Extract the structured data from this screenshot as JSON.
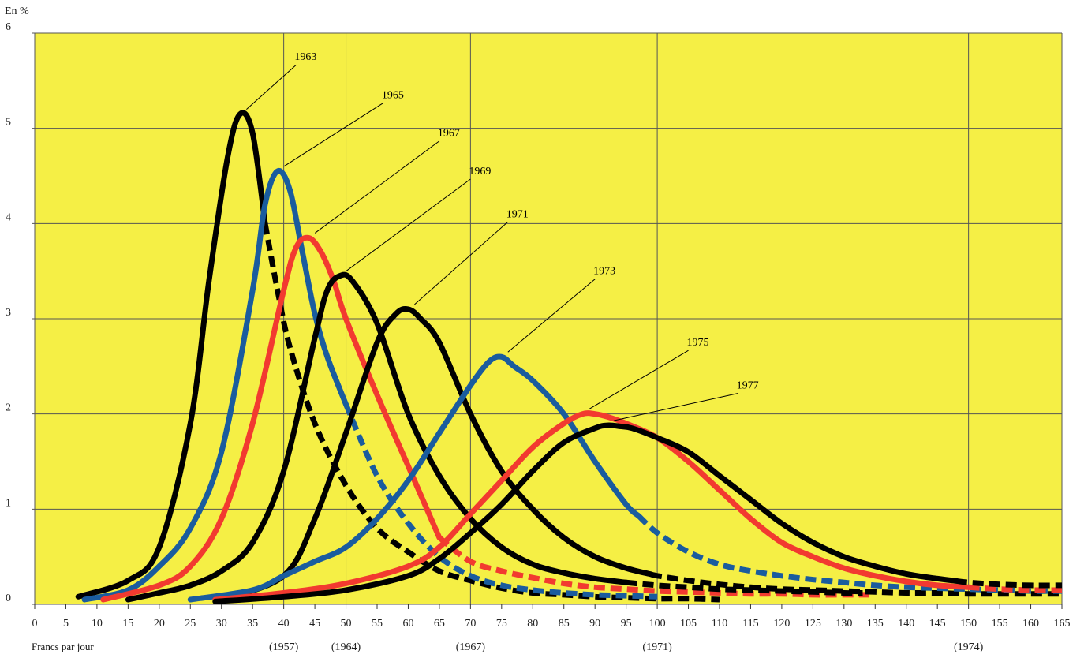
{
  "chart_data": {
    "type": "line",
    "ylabel": "En %",
    "xlabel": "Francs par jour",
    "xlim": [
      0,
      165
    ],
    "ylim": [
      0,
      6
    ],
    "x_ticks": [
      0,
      5,
      10,
      15,
      20,
      25,
      30,
      35,
      40,
      45,
      50,
      55,
      60,
      65,
      70,
      75,
      80,
      85,
      90,
      95,
      100,
      105,
      110,
      115,
      120,
      125,
      130,
      135,
      140,
      145,
      150,
      155,
      160,
      165
    ],
    "y_ticks": [
      0,
      1,
      2,
      3,
      4,
      5,
      6
    ],
    "grid_x": [
      0,
      40,
      50,
      70,
      100,
      150
    ],
    "grid_y": [
      0,
      1,
      2,
      3,
      4,
      5,
      6
    ],
    "grid": true,
    "background": "#f5ef45",
    "grid_color": "#555555",
    "reference_years": [
      {
        "x": 40,
        "label": "(1957)"
      },
      {
        "x": 50,
        "label": "(1964)"
      },
      {
        "x": 70,
        "label": "(1967)"
      },
      {
        "x": 100,
        "label": "(1971)"
      },
      {
        "x": 150,
        "label": "(1974)"
      }
    ],
    "series": [
      {
        "name": "1963",
        "color": "#000000",
        "solid_until": 37,
        "x": [
          7,
          15,
          20,
          25,
          28,
          31,
          33,
          35,
          37,
          39,
          41,
          45,
          50,
          55,
          60,
          65,
          70,
          75,
          80,
          85,
          90,
          95,
          100,
          105,
          110
        ],
        "y": [
          0.08,
          0.25,
          0.6,
          1.9,
          3.4,
          4.7,
          5.15,
          4.95,
          4.0,
          3.3,
          2.7,
          1.9,
          1.25,
          0.8,
          0.55,
          0.35,
          0.25,
          0.17,
          0.12,
          0.1,
          0.08,
          0.07,
          0.06,
          0.06,
          0.05
        ],
        "label": {
          "x": 42,
          "y": 5.7
        }
      },
      {
        "name": "1965",
        "color": "#1a5c9e",
        "solid_until": 50,
        "x": [
          8,
          15,
          20,
          25,
          30,
          35,
          37,
          39,
          41,
          43,
          45,
          47,
          50,
          55,
          60,
          65,
          70,
          75,
          80,
          85,
          90,
          95,
          100
        ],
        "y": [
          0.05,
          0.15,
          0.4,
          0.8,
          1.6,
          3.3,
          4.2,
          4.55,
          4.35,
          3.7,
          3.05,
          2.6,
          2.1,
          1.35,
          0.85,
          0.5,
          0.3,
          0.2,
          0.15,
          0.12,
          0.1,
          0.09,
          0.08
        ],
        "label": {
          "x": 56,
          "y": 5.3
        }
      },
      {
        "name": "1967",
        "color": "#f23a30",
        "solid_until": 65,
        "x": [
          11,
          20,
          25,
          30,
          35,
          40,
          42,
          44,
          46,
          48,
          50,
          55,
          60,
          65,
          70,
          75,
          80,
          85,
          90,
          95,
          100,
          105,
          110,
          115,
          120,
          125,
          130,
          134
        ],
        "y": [
          0.05,
          0.2,
          0.4,
          0.9,
          1.9,
          3.3,
          3.75,
          3.85,
          3.7,
          3.4,
          3.0,
          2.2,
          1.45,
          0.7,
          0.45,
          0.35,
          0.28,
          0.22,
          0.18,
          0.16,
          0.14,
          0.13,
          0.12,
          0.11,
          0.11,
          0.1,
          0.1,
          0.1
        ],
        "label": {
          "x": 65,
          "y": 4.9
        }
      },
      {
        "name": "1969",
        "color": "#000000",
        "solid_until": 95,
        "x": [
          15,
          20,
          25,
          30,
          35,
          40,
          45,
          47,
          49,
          51,
          55,
          60,
          65,
          70,
          75,
          80,
          85,
          90,
          95,
          100,
          105,
          110,
          115,
          120,
          125,
          130,
          133
        ],
        "y": [
          0.05,
          0.12,
          0.2,
          0.35,
          0.65,
          1.4,
          2.8,
          3.3,
          3.45,
          3.4,
          2.95,
          2.0,
          1.35,
          0.9,
          0.6,
          0.42,
          0.33,
          0.27,
          0.23,
          0.2,
          0.18,
          0.16,
          0.15,
          0.14,
          0.13,
          0.12,
          0.12
        ],
        "label": {
          "x": 70,
          "y": 4.5
        }
      },
      {
        "name": "1971",
        "color": "#000000",
        "solid_until": 99,
        "x": [
          30,
          40,
          45,
          50,
          55,
          58,
          60,
          62,
          65,
          70,
          75,
          80,
          85,
          90,
          95,
          100,
          105,
          110,
          115,
          120,
          125,
          130,
          135,
          140,
          145,
          150,
          155,
          160,
          165
        ],
        "y": [
          0.05,
          0.3,
          0.9,
          1.8,
          2.75,
          3.05,
          3.1,
          3.0,
          2.75,
          2.0,
          1.4,
          1.0,
          0.7,
          0.5,
          0.38,
          0.3,
          0.25,
          0.21,
          0.18,
          0.16,
          0.15,
          0.14,
          0.13,
          0.12,
          0.12,
          0.11,
          0.11,
          0.11,
          0.11
        ],
        "label": {
          "x": 76,
          "y": 4.05
        }
      },
      {
        "name": "1973",
        "color": "#1a5c9e",
        "solid_until": 97,
        "x": [
          25,
          35,
          40,
          45,
          50,
          55,
          60,
          65,
          70,
          73,
          75,
          77,
          80,
          85,
          90,
          95,
          100,
          105,
          110,
          115,
          120,
          125,
          130,
          135,
          140,
          145,
          150,
          155,
          160,
          165
        ],
        "y": [
          0.05,
          0.15,
          0.3,
          0.45,
          0.6,
          0.9,
          1.3,
          1.8,
          2.3,
          2.55,
          2.6,
          2.5,
          2.35,
          2.0,
          1.5,
          1.05,
          0.75,
          0.55,
          0.42,
          0.35,
          0.3,
          0.26,
          0.23,
          0.2,
          0.18,
          0.17,
          0.16,
          0.15,
          0.14,
          0.14
        ],
        "label": {
          "x": 90,
          "y": 3.45
        }
      },
      {
        "name": "1975",
        "color": "#f23a30",
        "solid_until": 150,
        "x": [
          29,
          40,
          50,
          60,
          65,
          70,
          75,
          80,
          85,
          88,
          90,
          92,
          95,
          100,
          105,
          110,
          115,
          120,
          125,
          130,
          135,
          140,
          145,
          150,
          155,
          160,
          165
        ],
        "y": [
          0.05,
          0.12,
          0.22,
          0.4,
          0.6,
          0.95,
          1.3,
          1.65,
          1.9,
          2.0,
          2.0,
          1.97,
          1.9,
          1.75,
          1.5,
          1.2,
          0.9,
          0.65,
          0.5,
          0.38,
          0.3,
          0.24,
          0.2,
          0.18,
          0.16,
          0.15,
          0.15
        ],
        "label": {
          "x": 105,
          "y": 2.7
        }
      },
      {
        "name": "1977",
        "color": "#000000",
        "solid_until": 148,
        "x": [
          29,
          40,
          50,
          60,
          65,
          70,
          75,
          80,
          85,
          90,
          92,
          94,
          96,
          100,
          105,
          110,
          115,
          120,
          125,
          130,
          135,
          140,
          145,
          150,
          155,
          160,
          165
        ],
        "y": [
          0.03,
          0.08,
          0.15,
          0.3,
          0.48,
          0.75,
          1.05,
          1.4,
          1.7,
          1.85,
          1.88,
          1.87,
          1.85,
          1.75,
          1.6,
          1.35,
          1.1,
          0.85,
          0.65,
          0.5,
          0.4,
          0.32,
          0.27,
          0.23,
          0.21,
          0.2,
          0.2
        ],
        "label": {
          "x": 113,
          "y": 2.25
        }
      }
    ]
  }
}
